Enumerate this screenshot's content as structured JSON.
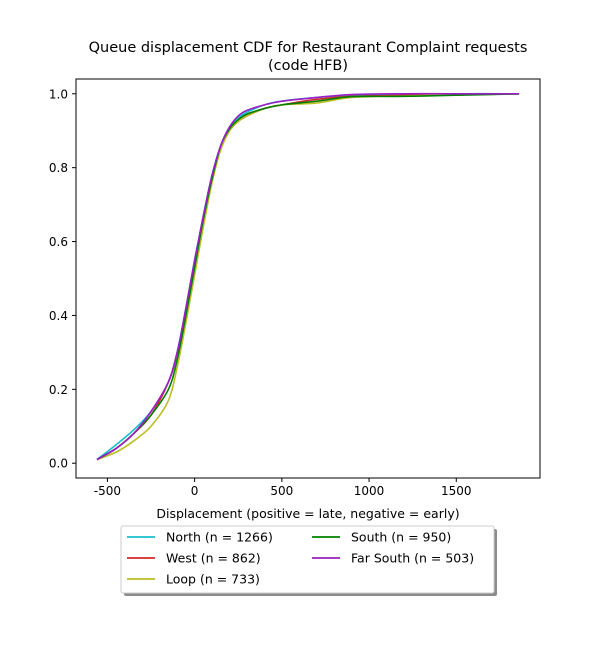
{
  "chart_data": {
    "type": "line",
    "title_line1": "Queue displacement CDF for Restaurant Complaint  requests",
    "title_line2": "(code HFB)",
    "xlabel": "Displacement (positive = late, negative = early)",
    "ylabel": "",
    "xlim": [
      -680,
      1980
    ],
    "ylim": [
      -0.04,
      1.04
    ],
    "x_ticks": [
      -500,
      0,
      500,
      1000,
      1500
    ],
    "x_tick_labels": [
      "-500",
      "0",
      "500",
      "1000",
      "1500"
    ],
    "y_ticks": [
      0.0,
      0.2,
      0.4,
      0.6,
      0.8,
      1.0
    ],
    "y_tick_labels": [
      "0.0",
      "0.2",
      "0.4",
      "0.6",
      "0.8",
      "1.0"
    ],
    "grid": false,
    "legend_position": "below-center",
    "series": [
      {
        "name": "North (n = 1266)",
        "color": "#17becf",
        "x": [
          -560,
          -450,
          -350,
          -250,
          -150,
          -100,
          -50,
          0,
          50,
          100,
          150,
          200,
          250,
          300,
          400,
          500,
          700,
          900,
          1200,
          1500,
          1860
        ],
        "y": [
          0.01,
          0.05,
          0.09,
          0.14,
          0.22,
          0.3,
          0.42,
          0.55,
          0.67,
          0.78,
          0.86,
          0.91,
          0.935,
          0.95,
          0.97,
          0.98,
          0.99,
          0.995,
          0.998,
          1.0,
          1.0
        ]
      },
      {
        "name": "West (n = 862)",
        "color": "#d62728",
        "x": [
          -560,
          -450,
          -350,
          -250,
          -150,
          -100,
          -50,
          0,
          50,
          100,
          150,
          200,
          250,
          300,
          400,
          500,
          700,
          900,
          1200,
          1500,
          1860
        ],
        "y": [
          0.01,
          0.04,
          0.08,
          0.13,
          0.22,
          0.3,
          0.41,
          0.54,
          0.66,
          0.77,
          0.85,
          0.9,
          0.925,
          0.94,
          0.96,
          0.97,
          0.985,
          0.993,
          0.996,
          0.999,
          1.0
        ]
      },
      {
        "name": "Loop (n = 733)",
        "color": "#bcbd22",
        "x": [
          -560,
          -450,
          -350,
          -250,
          -150,
          -100,
          -50,
          0,
          50,
          100,
          150,
          200,
          250,
          300,
          400,
          500,
          700,
          900,
          1200,
          1500,
          1860
        ],
        "y": [
          0.01,
          0.03,
          0.06,
          0.1,
          0.17,
          0.26,
          0.38,
          0.51,
          0.64,
          0.76,
          0.85,
          0.9,
          0.925,
          0.94,
          0.96,
          0.97,
          0.975,
          0.99,
          0.994,
          0.997,
          1.0
        ]
      },
      {
        "name": "South (n = 950)",
        "color": "#008000",
        "x": [
          -560,
          -450,
          -350,
          -250,
          -150,
          -100,
          -50,
          0,
          50,
          100,
          150,
          200,
          250,
          300,
          400,
          500,
          700,
          900,
          1200,
          1500,
          1860
        ],
        "y": [
          0.01,
          0.04,
          0.08,
          0.13,
          0.2,
          0.28,
          0.4,
          0.53,
          0.66,
          0.77,
          0.86,
          0.905,
          0.93,
          0.945,
          0.96,
          0.97,
          0.98,
          0.992,
          0.993,
          0.996,
          1.0
        ]
      },
      {
        "name": "Far South (n = 503)",
        "color": "#9a1fc4",
        "x": [
          -560,
          -450,
          -350,
          -250,
          -150,
          -100,
          -50,
          0,
          50,
          100,
          150,
          200,
          250,
          300,
          400,
          500,
          700,
          900,
          1200,
          1500,
          1860
        ],
        "y": [
          0.01,
          0.04,
          0.08,
          0.14,
          0.22,
          0.3,
          0.42,
          0.55,
          0.67,
          0.78,
          0.86,
          0.91,
          0.94,
          0.955,
          0.97,
          0.98,
          0.99,
          0.998,
          1.0,
          1.0,
          1.0
        ]
      }
    ]
  }
}
